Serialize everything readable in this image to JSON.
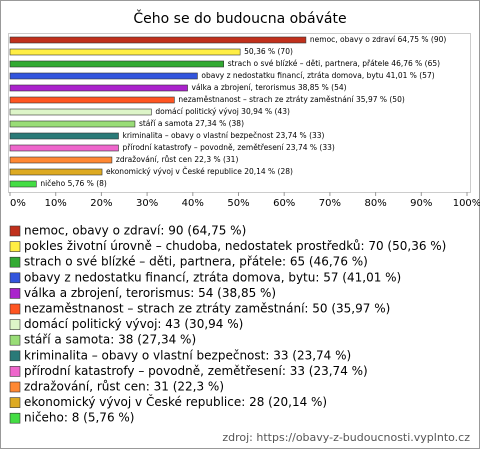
{
  "chart_data": {
    "type": "bar",
    "title": "Čeho se do budoucna obáváte",
    "values": [
      64.75,
      50.36,
      46.76,
      41.01,
      38.85,
      35.97,
      30.94,
      27.34,
      23.74,
      23.74,
      22.3,
      20.14,
      5.76
    ],
    "value_labels": [
      "nemoc, obavy o zdraví 64,75 % (90)",
      "50,36 % (70)",
      "strach o své blízké – děti, partnera, přátele 46,76 % (65)",
      "obavy z nedostatku financí, ztráta domova, bytu 41,01 % (57)",
      "válka a zbrojení, terorismus 38,85 % (54)",
      "nezaměstnanost – strach ze ztráty zaměstnání 35,97 % (50)",
      "domácí politický vývoj 30,94 % (43)",
      "stáří a samota 27,34 % (38)",
      "kriminalita – obavy o vlastní bezpečnost 23,74 % (33)",
      "přírodní katastrofy – povodně, zemětřesení 23,74 % (33)",
      "zdražování, růst cen 22,3 % (31)",
      "ekonomický vývoj v České republice 20,14 % (28)",
      "ničeho 5,76 % (8)"
    ],
    "legend_labels": [
      "nemoc, obavy o zdraví: 90 (64,75 %)",
      "pokles životní úrovně – chudoba, nedostatek prostředků: 70 (50,36 %)",
      "strach o své blízké – děti, partnera, přátele: 65 (46,76 %)",
      "obavy z nedostatku financí, ztráta domova, bytu: 57 (41,01 %)",
      "válka a zbrojení, terorismus: 54 (38,85 %)",
      "nezaměstnanost – strach ze ztráty zaměstnání: 50 (35,97 %)",
      "domácí politický vývoj: 43 (30,94 %)",
      "stáří a samota: 38 (27,34 %)",
      "kriminalita – obavy o vlastní bezpečnost: 33 (23,74 %)",
      "přírodní katastrofy – povodně, zemětřesení: 33 (23,74 %)",
      "zdražování, růst cen: 31 (22,3 %)",
      "ekonomický vývoj v České republice: 28 (20,14 %)",
      "ničeho: 8 (5,76 %)"
    ],
    "colors": [
      "#c0301c",
      "#ffee44",
      "#33aa33",
      "#3355dd",
      "#aa22cc",
      "#ff5522",
      "#ddf5c8",
      "#99dd77",
      "#2a7a78",
      "#ee66cc",
      "#ff8833",
      "#ddaa22",
      "#44dd44"
    ],
    "xlim": [
      0,
      100
    ],
    "xticks": [
      {
        "value": 0,
        "label": "0%"
      },
      {
        "value": 10,
        "label": "10%"
      },
      {
        "value": 20,
        "label": "20%"
      },
      {
        "value": 30,
        "label": "30%"
      },
      {
        "value": 40,
        "label": "40%"
      },
      {
        "value": 50,
        "label": "50%"
      },
      {
        "value": 60,
        "label": "60%"
      },
      {
        "value": 70,
        "label": "70%"
      },
      {
        "value": 80,
        "label": "80%"
      },
      {
        "value": 90,
        "label": "90%"
      },
      {
        "value": 100,
        "label": "100%"
      }
    ],
    "source": "zdroj: https://obavy-z-budoucnosti.vyplnto.cz"
  }
}
